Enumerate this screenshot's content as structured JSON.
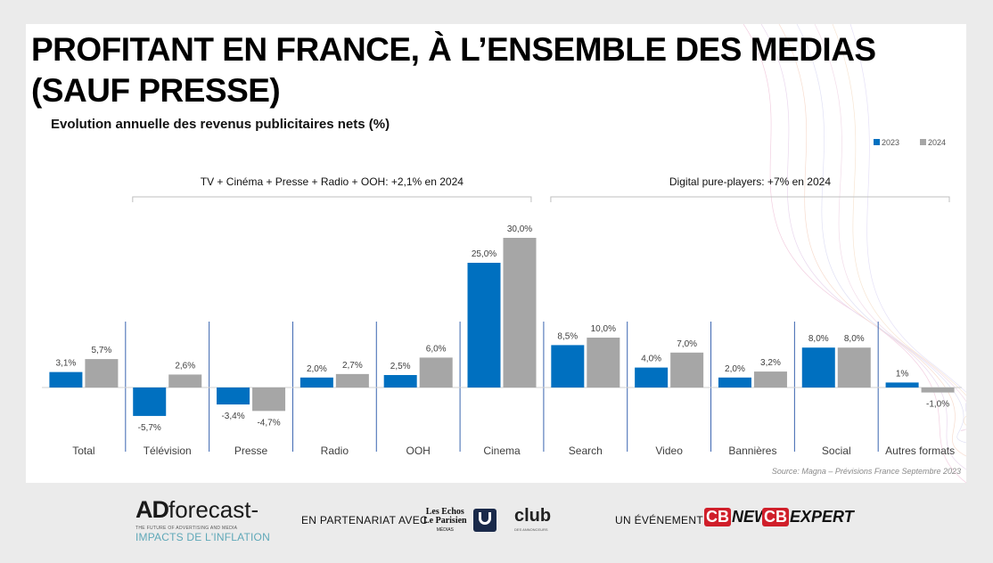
{
  "slide": {
    "title": "PROFITANT EN FRANCE, À L’ENSEMBLE DES MEDIAS (SAUF PRESSE)",
    "subtitle": "Evolution annuelle des revenus publicitaires nets (%)"
  },
  "chart_data": {
    "type": "bar",
    "categories": [
      "Total",
      "Télévision",
      "Presse",
      "Radio",
      "OOH",
      "Cinema",
      "Search",
      "Video",
      "Bannières",
      "Social",
      "Autres formats"
    ],
    "series": [
      {
        "name": "2023",
        "color": "#0070c0",
        "values": [
          3.1,
          -5.7,
          -3.4,
          2.0,
          2.5,
          25.0,
          8.5,
          4.0,
          2.0,
          8.0,
          1.0
        ]
      },
      {
        "name": "2024",
        "color": "#a6a6a6",
        "values": [
          5.7,
          2.6,
          -4.7,
          2.7,
          6.0,
          30.0,
          10.0,
          7.0,
          3.2,
          8.0,
          -1.0
        ]
      }
    ],
    "data_labels": [
      [
        "3,1%",
        "-5,7%",
        "-3,4%",
        "2,0%",
        "2,5%",
        "25,0%",
        "8,5%",
        "4,0%",
        "2,0%",
        "8,0%",
        "1%"
      ],
      [
        "5,7%",
        "2,6%",
        "-4,7%",
        "2,7%",
        "6,0%",
        "30,0%",
        "10,0%",
        "7,0%",
        "3,2%",
        "8,0%",
        "-1,0%"
      ]
    ],
    "group_annotations": [
      {
        "text": "TV + Cinéma + Presse + Radio + OOH:  +2,1% en 2024",
        "first": 1,
        "last": 5
      },
      {
        "text": "Digital  pure-players:  +7% en 2024",
        "first": 6,
        "last": 10
      }
    ],
    "legend_position": "top-right",
    "source": "Source: Magna – Prévisions France Septembre 2023",
    "ylim": [
      -7,
      31
    ],
    "grid": false
  },
  "footer": {
    "brand_ad": "AD",
    "brand_forecast": "forecast-",
    "brand_tagline": "THE FUTURE OF ADVERTISING AND MEDIA",
    "brand_sub": "IMPACTS DE L'INFLATION",
    "partner_label": "EN PARTENARIAT AVEC",
    "lesechos_1": "Les Echos",
    "lesechos_2": "Le Parisien",
    "lesechos_3": "MÉDIAS",
    "club": "club",
    "club_sub": "DES ANNONCEURS",
    "event_label": "UN ÉVÉNEMENT",
    "cb": "CB",
    "cbnews": "NEWS",
    "cbexpert": "EXPERT"
  }
}
